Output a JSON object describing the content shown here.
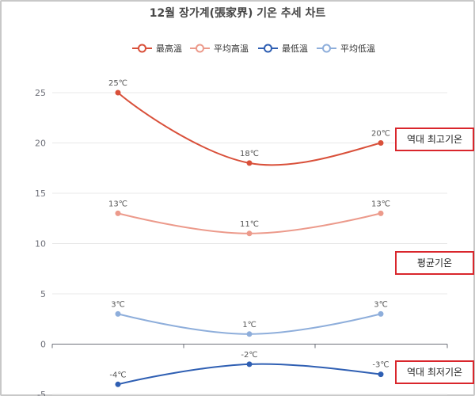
{
  "title": "12월 장가계(張家界) 기온 추세 차트",
  "chart_data": {
    "type": "line",
    "title": "12월 장가계(張家界) 기온 추세 차트",
    "categories": [
      "",
      "",
      ""
    ],
    "ylim": [
      -5,
      25
    ],
    "yticks": [
      -5,
      0,
      5,
      10,
      15,
      20,
      25
    ],
    "grid": true,
    "legend_position": "top",
    "unit": "℃",
    "series": [
      {
        "name": "最高溫",
        "values": [
          25,
          18,
          20
        ],
        "labels": [
          "25℃",
          "18℃",
          "20℃"
        ],
        "color": "#d9503a",
        "fill": "#ffffff"
      },
      {
        "name": "平均高溫",
        "values": [
          13,
          11,
          13
        ],
        "labels": [
          "13℃",
          "11℃",
          "13℃"
        ],
        "color": "#ec9a8b",
        "fill": "#ffffff"
      },
      {
        "name": "最低溫",
        "values": [
          -4,
          -2,
          -3
        ],
        "labels": [
          "-4℃",
          "-2℃",
          "-3℃"
        ],
        "color": "#2f5fb3",
        "fill": "#ffffff"
      },
      {
        "name": "平均低溫",
        "values": [
          3,
          1,
          3
        ],
        "labels": [
          "3℃",
          "1℃",
          "3℃"
        ],
        "color": "#8eaedb",
        "fill": "#ffffff"
      }
    ],
    "annotations": [
      "역대 최고기온",
      "평균기온",
      "역대 최저기온"
    ]
  }
}
